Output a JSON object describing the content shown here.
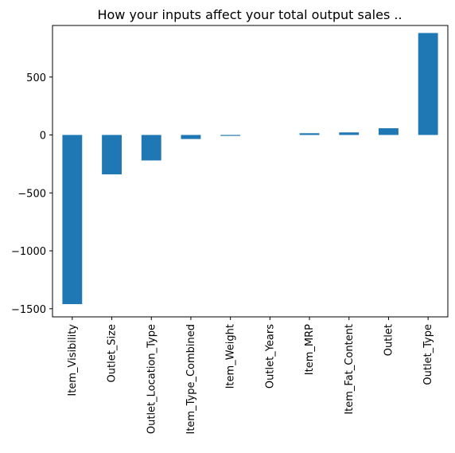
{
  "chart_data": {
    "type": "bar",
    "title": "How your inputs affect your total output sales ..",
    "xlabel": "",
    "ylabel": "",
    "categories": [
      "Item_Visibility",
      "Outlet_Size",
      "Outlet_Location_Type",
      "Item_Type_Combined",
      "Item_Weight",
      "Outlet_Years",
      "Item_MRP",
      "Item_Fat_Content",
      "Outlet",
      "Outlet_Type"
    ],
    "values": [
      -1460,
      -340,
      -220,
      -35,
      -8,
      0,
      15,
      22,
      58,
      880
    ],
    "ylim": [
      -1570,
      945
    ],
    "yticks": [
      -1500,
      -1000,
      -500,
      0,
      500
    ],
    "ytick_labels": [
      "−1500",
      "−1000",
      "−500",
      "0",
      "500"
    ],
    "bar_color": "#1f77b4",
    "grid": false,
    "legend": "none"
  }
}
